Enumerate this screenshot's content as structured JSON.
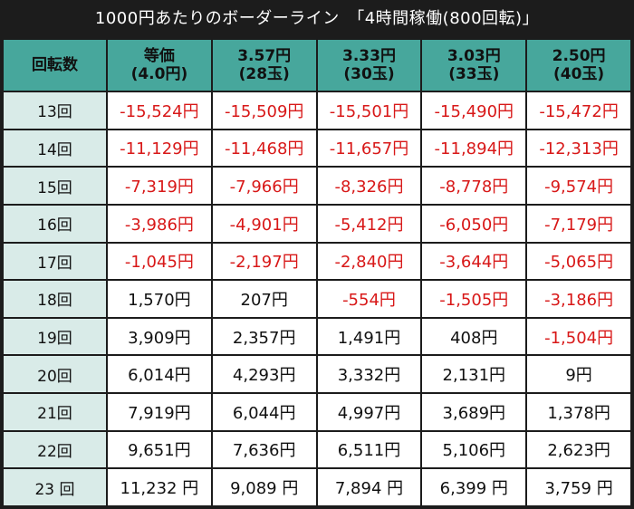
{
  "title": "1000円あたりのボーダーライン　「4時間稼働(800回転)」",
  "header": {
    "corner": "回転数",
    "columns": [
      {
        "line1": "等価",
        "line2": "(4.0円)"
      },
      {
        "line1": "3.57円",
        "line2": "(28玉)"
      },
      {
        "line1": "3.33円",
        "line2": "(30玉)"
      },
      {
        "line1": "3.03円",
        "line2": "(33玉)"
      },
      {
        "line1": "2.50円",
        "line2": "(40玉)"
      }
    ]
  },
  "rows": [
    {
      "label": "13回",
      "cells": [
        "-15,524円",
        "-15,509円",
        "-15,501円",
        "-15,490円",
        "-15,472円"
      ]
    },
    {
      "label": "14回",
      "cells": [
        "-11,129円",
        "-11,468円",
        "-11,657円",
        "-11,894円",
        "-12,313円"
      ]
    },
    {
      "label": "15回",
      "cells": [
        "-7,319円",
        "-7,966円",
        "-8,326円",
        "-8,778円",
        "-9,574円"
      ]
    },
    {
      "label": "16回",
      "cells": [
        "-3,986円",
        "-4,901円",
        "-5,412円",
        "-6,050円",
        "-7,179円"
      ]
    },
    {
      "label": "17回",
      "cells": [
        "-1,045円",
        "-2,197円",
        "-2,840円",
        "-3,644円",
        "-5,065円"
      ]
    },
    {
      "label": "18回",
      "cells": [
        "1,570円",
        "207円",
        "-554円",
        "-1,505円",
        "-3,186円"
      ]
    },
    {
      "label": "19回",
      "cells": [
        "3,909円",
        "2,357円",
        "1,491円",
        "408円",
        "-1,504円"
      ]
    },
    {
      "label": "20回",
      "cells": [
        "6,014円",
        "4,293円",
        "3,332円",
        "2,131円",
        "9円"
      ]
    },
    {
      "label": "21回",
      "cells": [
        "7,919円",
        "6,044円",
        "4,997円",
        "3,689円",
        "1,378円"
      ]
    },
    {
      "label": "22回",
      "cells": [
        "9,651円",
        "7,636円",
        "6,511円",
        "5,106円",
        "2,623円"
      ]
    },
    {
      "label": "23 回",
      "cells": [
        "11,232 円",
        "9,089 円",
        "7,894 円",
        "6,399 円",
        "3,759 円"
      ]
    }
  ],
  "colors": {
    "header_bg": "#47a79c",
    "row_label_bg": "#d9ebe8",
    "negative_text": "#d81818",
    "frame": "#1c1c1c"
  }
}
